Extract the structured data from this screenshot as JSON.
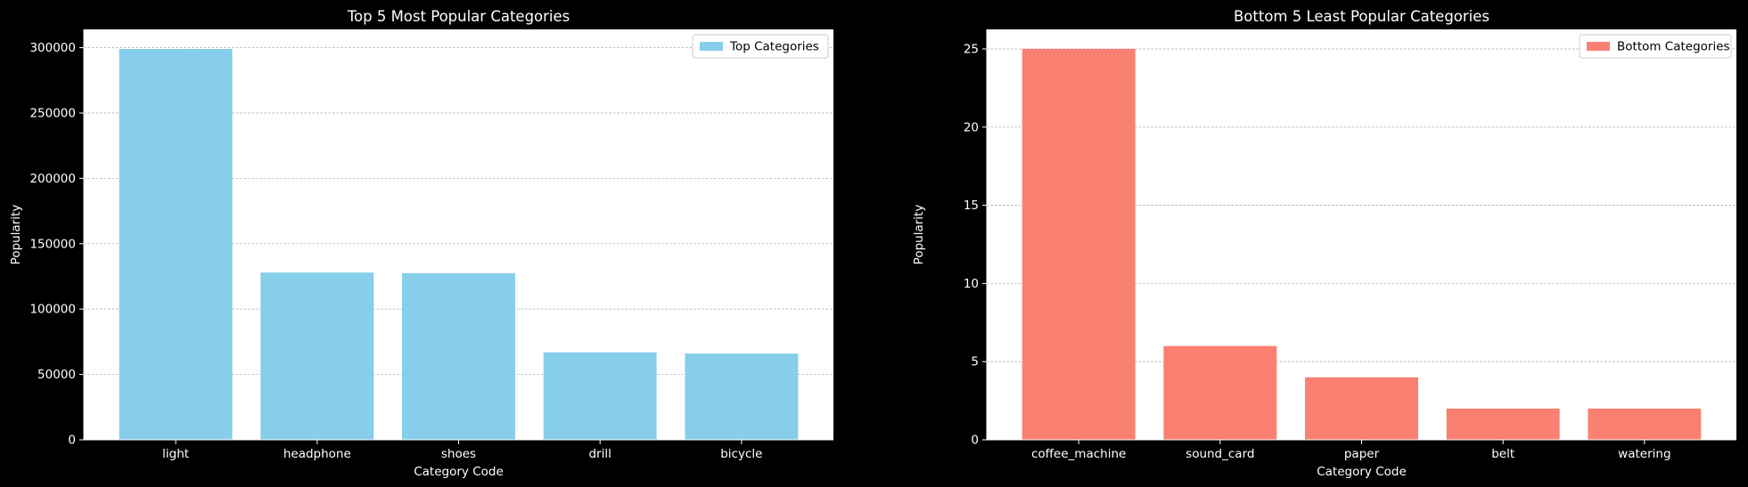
{
  "chart_data": [
    {
      "type": "bar",
      "title": "Top 5 Most Popular Categories",
      "xlabel": "Category Code",
      "ylabel": "Popularity",
      "categories": [
        "light",
        "headphone",
        "shoes",
        "drill",
        "bicycle"
      ],
      "series": [
        {
          "name": "Top Categories",
          "values": [
            299000,
            128000,
            127500,
            67000,
            66000
          ],
          "color": "#87CEEB"
        }
      ],
      "ylim": [
        0,
        314000
      ],
      "yticks": [
        0,
        50000,
        100000,
        150000,
        200000,
        250000,
        300000
      ],
      "ytick_labels": [
        "0",
        "50000",
        "100000",
        "150000",
        "200000",
        "250000",
        "300000"
      ],
      "grid": "horizontal dashed",
      "legend": "top-right"
    },
    {
      "type": "bar",
      "title": "Bottom 5 Least Popular Categories",
      "xlabel": "Category Code",
      "ylabel": "Popularity",
      "categories": [
        "coffee_machine",
        "sound_card",
        "paper",
        "belt",
        "watering"
      ],
      "series": [
        {
          "name": "Bottom Categories",
          "values": [
            25,
            6,
            4,
            2,
            2
          ],
          "color": "#FA8072"
        }
      ],
      "ylim": [
        0,
        26.25
      ],
      "yticks": [
        0,
        5,
        10,
        15,
        20,
        25
      ],
      "ytick_labels": [
        "0",
        "5",
        "10",
        "15",
        "20",
        "25"
      ],
      "grid": "horizontal dashed",
      "legend": "top-right"
    }
  ],
  "colors": {
    "figure_background": "#000000",
    "axes_background": "#ffffff",
    "text": "#ffffff",
    "grid": "#b0b0b0"
  }
}
